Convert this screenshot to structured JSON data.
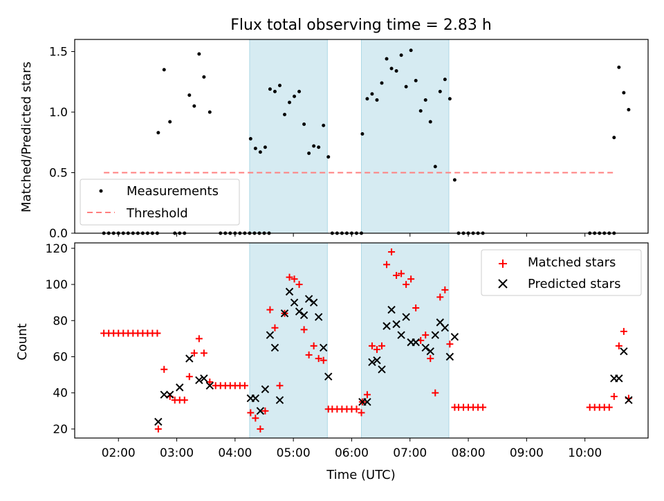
{
  "chart_data": [
    {
      "type": "scatter",
      "title": "Flux total observing time = 2.83 h",
      "xlabel": "",
      "ylabel": "Matched/Predicted stars",
      "xlim": [
        "01:15",
        "11:05"
      ],
      "ylim": [
        0,
        1.6
      ],
      "yticks": [
        0.0,
        0.5,
        1.0,
        1.5
      ],
      "ytick_labels": [
        "0.0",
        "0.5",
        "1.0",
        "1.5"
      ],
      "shaded_intervals": [
        [
          "04:15",
          "05:35"
        ],
        [
          "06:10",
          "07:40"
        ]
      ],
      "threshold": {
        "name": "Threshold",
        "y": 0.5,
        "x": [
          "01:45",
          "10:30"
        ],
        "color": "#ff7f7f"
      },
      "legend": {
        "position": "lower-left",
        "entries": [
          "Measurements",
          "Threshold"
        ]
      },
      "series": [
        {
          "name": "Measurements",
          "color": "#000000",
          "points": [
            [
              "01:45",
              0
            ],
            [
              "01:50",
              0
            ],
            [
              "01:55",
              0
            ],
            [
              "02:00",
              0
            ],
            [
              "02:05",
              0
            ],
            [
              "02:10",
              0
            ],
            [
              "02:15",
              0
            ],
            [
              "02:20",
              0
            ],
            [
              "02:25",
              0
            ],
            [
              "02:30",
              0
            ],
            [
              "02:35",
              0
            ],
            [
              "02:40",
              0
            ],
            [
              "02:41",
              0.83
            ],
            [
              "02:47",
              1.35
            ],
            [
              "02:53",
              0.92
            ],
            [
              "02:58",
              0
            ],
            [
              "03:03",
              0
            ],
            [
              "03:08",
              0
            ],
            [
              "03:13",
              1.14
            ],
            [
              "03:18",
              1.05
            ],
            [
              "03:23",
              1.48
            ],
            [
              "03:28",
              1.29
            ],
            [
              "03:34",
              1.0
            ],
            [
              "03:45",
              0
            ],
            [
              "03:50",
              0
            ],
            [
              "03:55",
              0
            ],
            [
              "04:00",
              0
            ],
            [
              "04:05",
              0
            ],
            [
              "04:10",
              0
            ],
            [
              "04:15",
              0
            ],
            [
              "04:20",
              0
            ],
            [
              "04:25",
              0
            ],
            [
              "04:30",
              0
            ],
            [
              "04:35",
              0
            ],
            [
              "04:16",
              0.78
            ],
            [
              "04:21",
              0.7
            ],
            [
              "04:26",
              0.67
            ],
            [
              "04:31",
              0.71
            ],
            [
              "04:36",
              1.19
            ],
            [
              "04:41",
              1.17
            ],
            [
              "04:46",
              1.22
            ],
            [
              "04:51",
              0.98
            ],
            [
              "04:56",
              1.08
            ],
            [
              "05:01",
              1.13
            ],
            [
              "05:06",
              1.17
            ],
            [
              "05:11",
              0.9
            ],
            [
              "05:16",
              0.66
            ],
            [
              "05:21",
              0.72
            ],
            [
              "05:26",
              0.71
            ],
            [
              "05:31",
              0.89
            ],
            [
              "05:36",
              0.63
            ],
            [
              "05:40",
              0
            ],
            [
              "05:45",
              0
            ],
            [
              "05:50",
              0
            ],
            [
              "05:55",
              0
            ],
            [
              "06:00",
              0
            ],
            [
              "06:05",
              0
            ],
            [
              "06:10",
              0
            ],
            [
              "06:11",
              0.82
            ],
            [
              "06:16",
              1.11
            ],
            [
              "06:21",
              1.15
            ],
            [
              "06:26",
              1.1
            ],
            [
              "06:31",
              1.24
            ],
            [
              "06:36",
              1.44
            ],
            [
              "06:41",
              1.36
            ],
            [
              "06:46",
              1.34
            ],
            [
              "06:51",
              1.47
            ],
            [
              "06:56",
              1.21
            ],
            [
              "07:01",
              1.51
            ],
            [
              "07:06",
              1.26
            ],
            [
              "07:11",
              1.01
            ],
            [
              "07:16",
              1.1
            ],
            [
              "07:21",
              0.92
            ],
            [
              "07:26",
              0.55
            ],
            [
              "07:31",
              1.17
            ],
            [
              "07:36",
              1.27
            ],
            [
              "07:41",
              1.11
            ],
            [
              "07:46",
              0.44
            ],
            [
              "07:50",
              0
            ],
            [
              "07:55",
              0
            ],
            [
              "08:00",
              0
            ],
            [
              "08:05",
              0
            ],
            [
              "08:10",
              0
            ],
            [
              "08:15",
              0
            ],
            [
              "10:05",
              0
            ],
            [
              "10:10",
              0
            ],
            [
              "10:15",
              0
            ],
            [
              "10:20",
              0
            ],
            [
              "10:25",
              0
            ],
            [
              "10:30",
              0
            ],
            [
              "10:30",
              0.79
            ],
            [
              "10:35",
              1.37
            ],
            [
              "10:40",
              1.16
            ],
            [
              "10:45",
              1.02
            ]
          ]
        }
      ]
    },
    {
      "type": "scatter",
      "title": "",
      "xlabel": "Time (UTC)",
      "ylabel": "Count",
      "xlim": [
        "01:15",
        "11:05"
      ],
      "ylim": [
        15,
        123
      ],
      "yticks": [
        20,
        40,
        60,
        80,
        100,
        120
      ],
      "ytick_labels": [
        "20",
        "40",
        "60",
        "80",
        "100",
        "120"
      ],
      "xticks": [
        "02:00",
        "03:00",
        "04:00",
        "05:00",
        "06:00",
        "07:00",
        "08:00",
        "09:00",
        "10:00"
      ],
      "shaded_intervals": [
        [
          "04:15",
          "05:35"
        ],
        [
          "06:10",
          "07:40"
        ]
      ],
      "legend": {
        "position": "upper-right",
        "entries": [
          "Matched stars",
          "Predicted stars"
        ]
      },
      "series": [
        {
          "name": "Matched stars",
          "marker": "+",
          "color": "#ff0000",
          "points": [
            [
              "01:45",
              73
            ],
            [
              "01:50",
              73
            ],
            [
              "01:55",
              73
            ],
            [
              "02:00",
              73
            ],
            [
              "02:05",
              73
            ],
            [
              "02:10",
              73
            ],
            [
              "02:15",
              73
            ],
            [
              "02:20",
              73
            ],
            [
              "02:25",
              73
            ],
            [
              "02:30",
              73
            ],
            [
              "02:35",
              73
            ],
            [
              "02:40",
              73
            ],
            [
              "02:41",
              20
            ],
            [
              "02:47",
              53
            ],
            [
              "02:53",
              38
            ],
            [
              "02:58",
              36
            ],
            [
              "03:03",
              36
            ],
            [
              "03:08",
              36
            ],
            [
              "03:13",
              49
            ],
            [
              "03:18",
              62
            ],
            [
              "03:23",
              70
            ],
            [
              "03:28",
              62
            ],
            [
              "03:34",
              46
            ],
            [
              "03:40",
              44
            ],
            [
              "03:45",
              44
            ],
            [
              "03:50",
              44
            ],
            [
              "03:55",
              44
            ],
            [
              "04:00",
              44
            ],
            [
              "04:05",
              44
            ],
            [
              "04:10",
              44
            ],
            [
              "04:16",
              29
            ],
            [
              "04:21",
              26
            ],
            [
              "04:26",
              20
            ],
            [
              "04:31",
              30
            ],
            [
              "04:36",
              86
            ],
            [
              "04:41",
              76
            ],
            [
              "04:46",
              44
            ],
            [
              "04:51",
              84
            ],
            [
              "04:56",
              104
            ],
            [
              "05:01",
              103
            ],
            [
              "05:06",
              100
            ],
            [
              "05:11",
              75
            ],
            [
              "05:16",
              61
            ],
            [
              "05:21",
              66
            ],
            [
              "05:26",
              59
            ],
            [
              "05:31",
              58
            ],
            [
              "05:36",
              31
            ],
            [
              "05:40",
              31
            ],
            [
              "05:45",
              31
            ],
            [
              "05:50",
              31
            ],
            [
              "05:55",
              31
            ],
            [
              "06:00",
              31
            ],
            [
              "06:05",
              31
            ],
            [
              "06:10",
              29
            ],
            [
              "06:11",
              35
            ],
            [
              "06:16",
              39
            ],
            [
              "06:21",
              66
            ],
            [
              "06:26",
              64
            ],
            [
              "06:31",
              66
            ],
            [
              "06:36",
              111
            ],
            [
              "06:41",
              118
            ],
            [
              "06:46",
              105
            ],
            [
              "06:51",
              106
            ],
            [
              "06:56",
              100
            ],
            [
              "07:01",
              103
            ],
            [
              "07:06",
              87
            ],
            [
              "07:11",
              69
            ],
            [
              "07:16",
              72
            ],
            [
              "07:21",
              59
            ],
            [
              "07:26",
              40
            ],
            [
              "07:31",
              93
            ],
            [
              "07:36",
              97
            ],
            [
              "07:41",
              67
            ],
            [
              "07:46",
              32
            ],
            [
              "07:50",
              32
            ],
            [
              "07:55",
              32
            ],
            [
              "08:00",
              32
            ],
            [
              "08:05",
              32
            ],
            [
              "08:10",
              32
            ],
            [
              "08:15",
              32
            ],
            [
              "10:05",
              32
            ],
            [
              "10:10",
              32
            ],
            [
              "10:15",
              32
            ],
            [
              "10:20",
              32
            ],
            [
              "10:25",
              32
            ],
            [
              "10:30",
              38
            ],
            [
              "10:35",
              66
            ],
            [
              "10:40",
              74
            ],
            [
              "10:45",
              37
            ]
          ]
        },
        {
          "name": "Predicted stars",
          "marker": "x",
          "color": "#000000",
          "points": [
            [
              "02:41",
              24
            ],
            [
              "02:47",
              39
            ],
            [
              "02:53",
              39
            ],
            [
              "03:03",
              43
            ],
            [
              "03:13",
              59
            ],
            [
              "03:23",
              47
            ],
            [
              "03:28",
              48
            ],
            [
              "03:34",
              44
            ],
            [
              "04:16",
              37
            ],
            [
              "04:21",
              37
            ],
            [
              "04:26",
              30
            ],
            [
              "04:31",
              42
            ],
            [
              "04:36",
              72
            ],
            [
              "04:41",
              65
            ],
            [
              "04:46",
              36
            ],
            [
              "04:51",
              84
            ],
            [
              "04:56",
              96
            ],
            [
              "05:01",
              90
            ],
            [
              "05:06",
              85
            ],
            [
              "05:11",
              83
            ],
            [
              "05:16",
              92
            ],
            [
              "05:21",
              90
            ],
            [
              "05:26",
              82
            ],
            [
              "05:31",
              65
            ],
            [
              "05:36",
              49
            ],
            [
              "06:11",
              35
            ],
            [
              "06:16",
              35
            ],
            [
              "06:21",
              57
            ],
            [
              "06:26",
              58
            ],
            [
              "06:31",
              53
            ],
            [
              "06:36",
              77
            ],
            [
              "06:41",
              86
            ],
            [
              "06:46",
              78
            ],
            [
              "06:51",
              72
            ],
            [
              "06:56",
              82
            ],
            [
              "07:01",
              68
            ],
            [
              "07:06",
              68
            ],
            [
              "07:16",
              65
            ],
            [
              "07:21",
              63
            ],
            [
              "07:26",
              72
            ],
            [
              "07:31",
              79
            ],
            [
              "07:36",
              76
            ],
            [
              "07:41",
              60
            ],
            [
              "07:46",
              71
            ],
            [
              "10:30",
              48
            ],
            [
              "10:35",
              48
            ],
            [
              "10:40",
              63
            ],
            [
              "10:45",
              36
            ]
          ]
        }
      ]
    }
  ]
}
